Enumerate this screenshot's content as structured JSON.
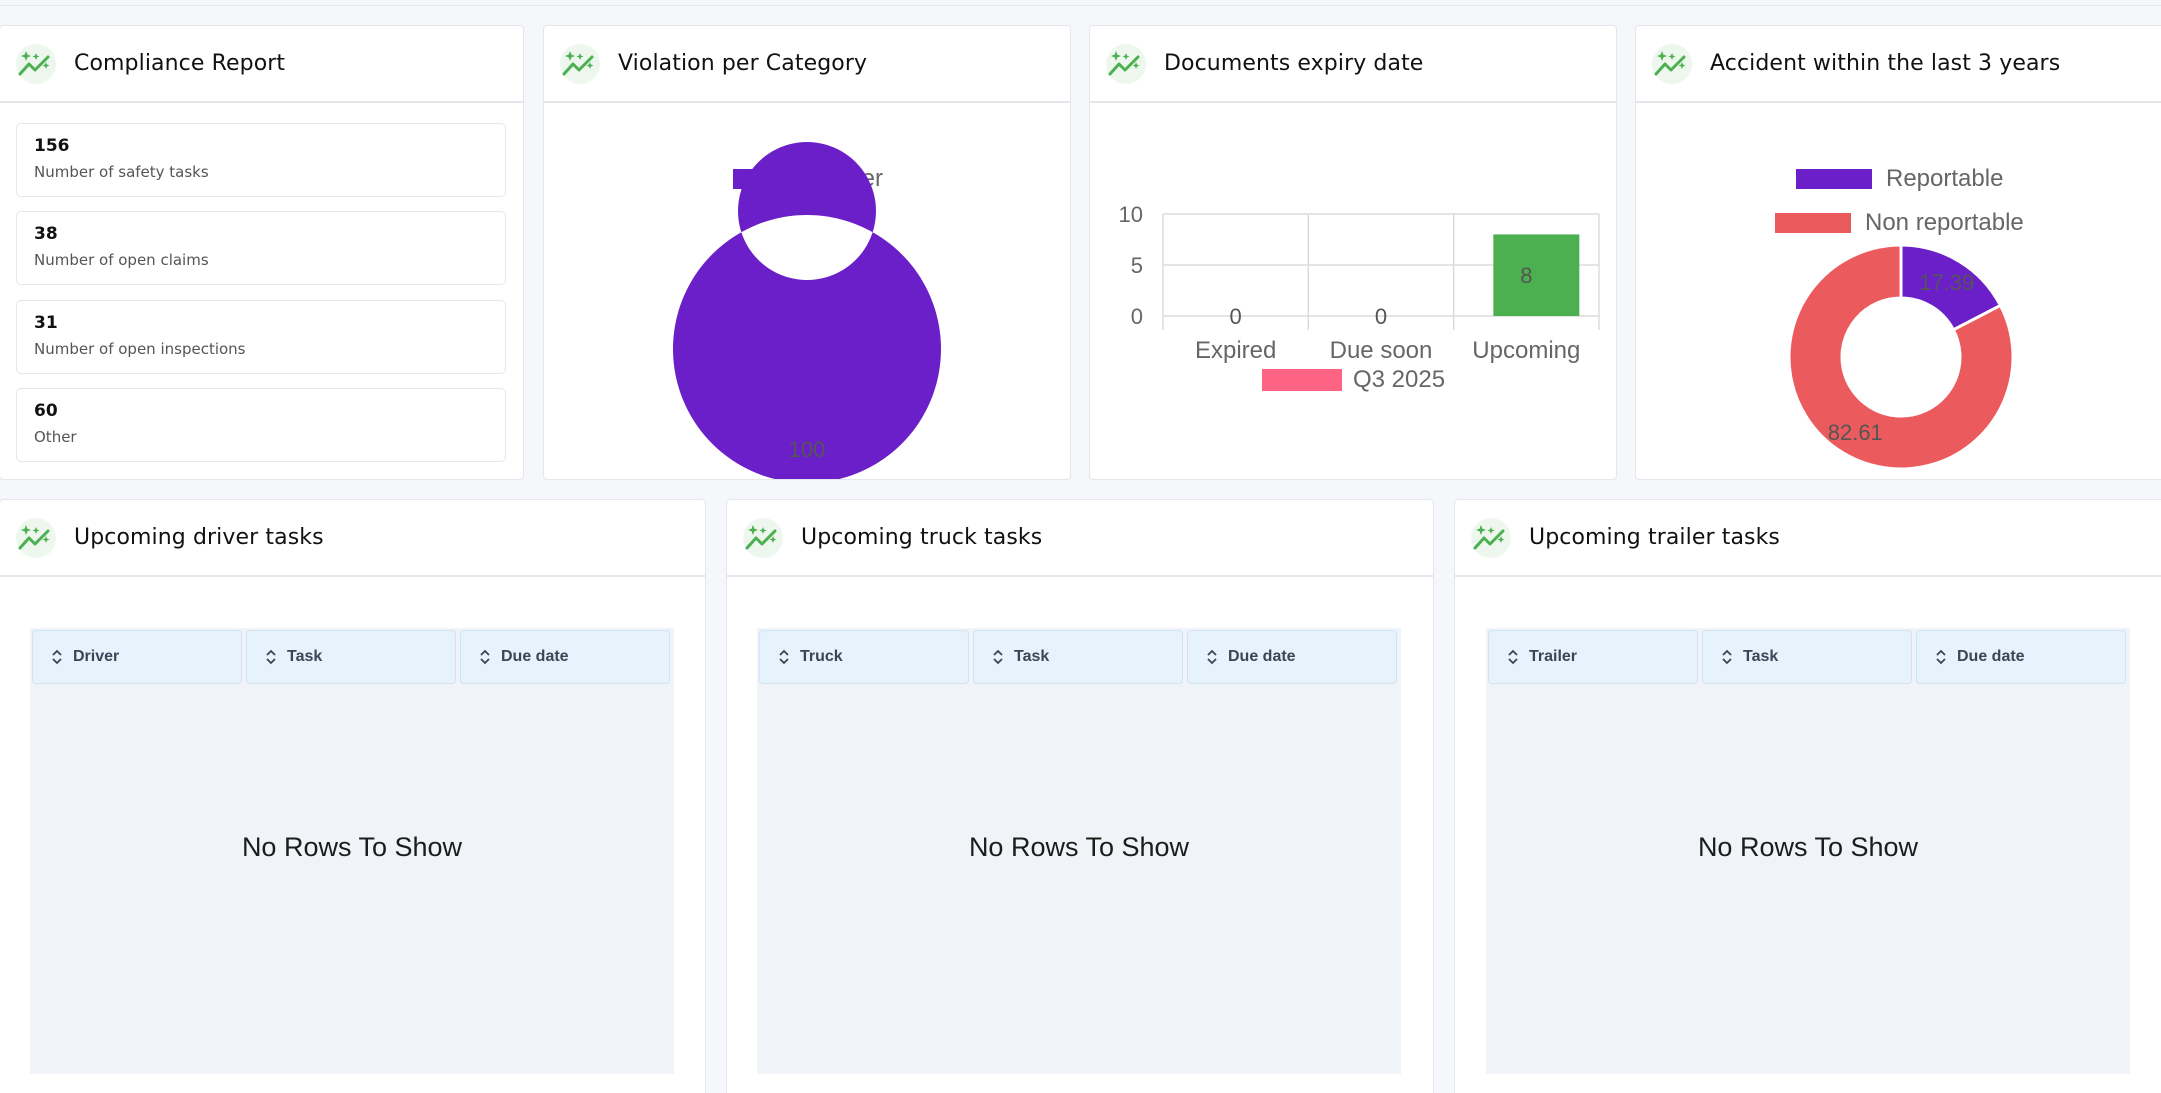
{
  "colors": {
    "accent_green": "#4caf50",
    "purple": "#6a1fc9",
    "red": "#eb5a5c",
    "pink": "#ff6384",
    "bar_green": "#4caf50"
  },
  "header_icon": "sparkle-trend-icon",
  "compliance": {
    "title": "Compliance Report",
    "stats": [
      {
        "value": "156",
        "label": "Number of safety tasks"
      },
      {
        "value": "38",
        "label": "Number of open claims"
      },
      {
        "value": "31",
        "label": "Number of open inspections"
      },
      {
        "value": "60",
        "label": "Other"
      }
    ]
  },
  "violation": {
    "title": "Violation per Category",
    "legend": [
      "Other"
    ]
  },
  "documents": {
    "title": "Documents expiry date",
    "legend": "Q3 2025"
  },
  "accident": {
    "title": "Accident within the last 3 years",
    "legend": [
      "Reportable",
      "Non reportable"
    ]
  },
  "chart_data": [
    {
      "type": "pie",
      "title": "",
      "categories": [
        "Other"
      ],
      "values": [
        100
      ],
      "data_labels": [
        "100"
      ],
      "legend": "top"
    },
    {
      "type": "bar",
      "title": "",
      "categories": [
        "Expired",
        "Due soon",
        "Upcoming"
      ],
      "series": [
        {
          "name": "Q3 2025",
          "values": [
            0,
            0,
            8
          ]
        }
      ],
      "data_labels": [
        "0",
        "0",
        "8"
      ],
      "ylim": [
        0,
        10
      ],
      "yticks": [
        "0",
        "5",
        "10"
      ],
      "grid": true,
      "legend": "bottom"
    },
    {
      "type": "pie",
      "title": "",
      "categories": [
        "Reportable",
        "Non reportable"
      ],
      "values": [
        17.39,
        82.61
      ],
      "data_labels": [
        "17.39",
        "82.61"
      ],
      "legend": "top"
    }
  ],
  "driver_tasks": {
    "title": "Upcoming driver tasks",
    "columns": [
      "Driver",
      "Task",
      "Due date"
    ],
    "empty": "No Rows To Show"
  },
  "truck_tasks": {
    "title": "Upcoming truck tasks",
    "columns": [
      "Truck",
      "Task",
      "Due date"
    ],
    "empty": "No Rows To Show"
  },
  "trailer_tasks": {
    "title": "Upcoming trailer tasks",
    "columns": [
      "Trailer",
      "Task",
      "Due date"
    ],
    "empty": "No Rows To Show"
  }
}
